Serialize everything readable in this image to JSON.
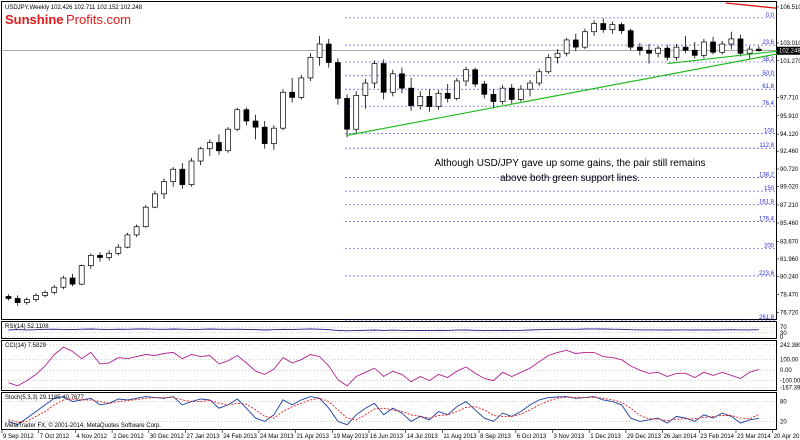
{
  "header": {
    "symbol_line": "USDJPY,Weekly  102.426 102.711 102.152 102.248"
  },
  "logo": {
    "part1": "Sunshine",
    "part2": "Profits.com"
  },
  "annotation": {
    "line1": "Although USD/JPY gave up some gains, the pair still remains",
    "line2": "above both green support lines."
  },
  "footer": {
    "copyright": "MetaTrader FX, © 2001-2014, MetaQuotes Software Corp."
  },
  "chart_data": {
    "type": "candlestick",
    "price_scale_labels": [
      "106.510",
      "103.010",
      "102.248",
      "101.270",
      "97.710",
      "95.910",
      "94.120",
      "92.460",
      "90.720",
      "89.020",
      "87.210",
      "85.460",
      "83.670",
      "81.960",
      "80.240",
      "78.470",
      "76.720"
    ],
    "price_scale_values": [
      106.51,
      103.01,
      102.248,
      101.27,
      97.71,
      95.91,
      94.12,
      92.46,
      90.72,
      89.02,
      87.21,
      85.46,
      83.67,
      81.96,
      80.24,
      78.47,
      76.72
    ],
    "price_range": [
      76.2,
      106.9
    ],
    "current_price": 102.248,
    "fib_levels": [
      {
        "label": "0.0",
        "value": 105.45
      },
      {
        "label": "23.6",
        "value": 102.8
      },
      {
        "label": "38.2",
        "value": 101.15
      },
      {
        "label": "50.0",
        "value": 99.8
      },
      {
        "label": "61.8",
        "value": 98.5
      },
      {
        "label": "76.4",
        "value": 96.85
      },
      {
        "label": "100",
        "value": 94.2
      },
      {
        "label": "112.8",
        "value": 92.75
      },
      {
        "label": "138.2",
        "value": 89.9
      },
      {
        "label": "150",
        "value": 88.57
      },
      {
        "label": "161.8",
        "value": 87.25
      },
      {
        "label": "176.4",
        "value": 85.6
      },
      {
        "label": "200",
        "value": 82.95
      },
      {
        "label": "223.6",
        "value": 80.3
      },
      {
        "label": "261.8",
        "value": 76.0
      }
    ],
    "x_labels": [
      "9 Sep 2012",
      "7 Oct 2012",
      "4 Nov 2012",
      "2 Dec 2012",
      "30 Dec 2012",
      "27 Jan 2013",
      "24 Feb 2013",
      "24 Mar 2013",
      "21 Apr 2013",
      "19 May 2013",
      "16 Jun 2013",
      "14 Jul 2013",
      "11 Aug 2013",
      "8 Sep 2013",
      "6 Oct 2013",
      "3 Nov 2013",
      "1 Dec 2013",
      "29 Dec 2013",
      "26 Jan 2014",
      "23 Feb 2014",
      "23 Mar 2014",
      "20 Apr 2014"
    ],
    "candles": [
      [
        78.3,
        78.5,
        77.9,
        78.1
      ],
      [
        78.1,
        78.4,
        77.4,
        77.7
      ],
      [
        77.7,
        78.2,
        77.5,
        78.0
      ],
      [
        78.0,
        78.6,
        77.8,
        78.4
      ],
      [
        78.4,
        78.9,
        78.2,
        78.7
      ],
      [
        78.7,
        79.4,
        78.5,
        79.2
      ],
      [
        79.2,
        80.3,
        79.0,
        80.1
      ],
      [
        80.1,
        80.5,
        79.3,
        79.5
      ],
      [
        79.5,
        81.4,
        79.4,
        81.3
      ],
      [
        81.3,
        82.5,
        81.0,
        82.3
      ],
      [
        82.3,
        82.6,
        81.7,
        82.1
      ],
      [
        82.1,
        82.8,
        81.8,
        82.5
      ],
      [
        82.5,
        83.4,
        82.3,
        83.1
      ],
      [
        83.1,
        84.5,
        83.0,
        84.3
      ],
      [
        84.3,
        85.3,
        84.1,
        85.1
      ],
      [
        85.1,
        87.2,
        85.0,
        87.0
      ],
      [
        87.0,
        88.6,
        86.9,
        88.3
      ],
      [
        88.3,
        89.8,
        87.8,
        89.5
      ],
      [
        89.5,
        90.9,
        89.0,
        90.7
      ],
      [
        90.7,
        91.3,
        88.8,
        89.2
      ],
      [
        89.2,
        91.8,
        89.0,
        91.5
      ],
      [
        91.5,
        92.9,
        91.1,
        92.7
      ],
      [
        92.7,
        93.6,
        92.0,
        93.3
      ],
      [
        93.3,
        94.1,
        92.1,
        92.5
      ],
      [
        92.5,
        94.8,
        92.3,
        94.6
      ],
      [
        94.6,
        96.7,
        94.4,
        96.5
      ],
      [
        96.5,
        96.7,
        95.0,
        95.4
      ],
      [
        95.4,
        96.0,
        93.6,
        94.8
      ],
      [
        94.8,
        95.4,
        92.7,
        93.2
      ],
      [
        93.2,
        95.0,
        92.6,
        94.7
      ],
      [
        94.7,
        98.5,
        94.5,
        98.2
      ],
      [
        98.2,
        99.6,
        97.2,
        97.7
      ],
      [
        97.7,
        99.9,
        97.5,
        99.6
      ],
      [
        99.6,
        102.0,
        99.3,
        101.6
      ],
      [
        101.6,
        103.7,
        100.8,
        102.9
      ],
      [
        102.9,
        103.4,
        100.6,
        101.1
      ],
      [
        101.1,
        101.5,
        97.0,
        97.6
      ],
      [
        97.6,
        98.0,
        93.8,
        94.6
      ],
      [
        94.6,
        98.3,
        94.1,
        97.9
      ],
      [
        97.9,
        99.5,
        96.6,
        99.1
      ],
      [
        99.1,
        101.3,
        98.6,
        101.0
      ],
      [
        101.0,
        101.4,
        97.5,
        98.2
      ],
      [
        98.2,
        100.4,
        97.8,
        100.0
      ],
      [
        100.0,
        100.6,
        98.1,
        98.6
      ],
      [
        98.6,
        99.6,
        96.4,
        96.9
      ],
      [
        96.9,
        98.3,
        96.5,
        97.8
      ],
      [
        97.8,
        98.5,
        96.3,
        96.8
      ],
      [
        96.8,
        98.4,
        96.5,
        98.1
      ],
      [
        98.1,
        99.0,
        97.2,
        97.6
      ],
      [
        97.6,
        99.6,
        97.4,
        99.3
      ],
      [
        99.3,
        100.7,
        98.8,
        100.4
      ],
      [
        100.4,
        100.6,
        98.7,
        99.0
      ],
      [
        99.0,
        99.3,
        97.6,
        98.0
      ],
      [
        98.0,
        98.5,
        96.6,
        97.3
      ],
      [
        97.3,
        98.9,
        97.0,
        98.6
      ],
      [
        98.6,
        99.0,
        97.1,
        97.5
      ],
      [
        97.5,
        98.9,
        97.3,
        98.5
      ],
      [
        98.5,
        99.4,
        97.8,
        99.1
      ],
      [
        99.1,
        100.5,
        98.8,
        100.2
      ],
      [
        100.2,
        101.9,
        100.0,
        101.6
      ],
      [
        101.6,
        102.4,
        101.0,
        102.0
      ],
      [
        102.0,
        103.5,
        101.7,
        103.3
      ],
      [
        103.3,
        103.9,
        102.2,
        102.6
      ],
      [
        102.6,
        104.4,
        102.4,
        104.1
      ],
      [
        104.1,
        105.2,
        103.7,
        104.9
      ],
      [
        104.9,
        105.4,
        104.0,
        104.3
      ],
      [
        104.3,
        105.1,
        103.9,
        104.8
      ],
      [
        104.8,
        105.0,
        103.9,
        104.2
      ],
      [
        104.2,
        104.4,
        102.3,
        102.6
      ],
      [
        102.6,
        103.0,
        101.8,
        102.3
      ],
      [
        102.3,
        102.9,
        101.0,
        102.0
      ],
      [
        102.0,
        102.7,
        101.6,
        102.5
      ],
      [
        102.5,
        102.8,
        101.3,
        101.6
      ],
      [
        101.6,
        102.9,
        101.3,
        102.6
      ],
      [
        102.6,
        103.7,
        102.0,
        102.3
      ],
      [
        102.3,
        103.1,
        101.5,
        101.8
      ],
      [
        101.8,
        103.4,
        101.5,
        103.1
      ],
      [
        103.1,
        103.6,
        101.9,
        102.1
      ],
      [
        102.1,
        103.2,
        101.9,
        102.9
      ],
      [
        102.9,
        104.1,
        102.4,
        103.4
      ],
      [
        103.4,
        103.8,
        101.7,
        102.0
      ],
      [
        102.0,
        102.7,
        101.4,
        102.4
      ],
      [
        102.4,
        102.7,
        102.15,
        102.25
      ]
    ],
    "support_lines": [
      {
        "name": "support-1",
        "color": "#22bb22",
        "from_index": 37,
        "from_value": 94.0,
        "to_index": 82,
        "to_value": 101.6
      },
      {
        "name": "support-2",
        "color": "#22bb22",
        "from_index": 72,
        "from_value": 101.0,
        "to_index": 82,
        "to_value": 102.0
      }
    ],
    "resistance_line": {
      "color": "#dd1111",
      "from_index": 74,
      "from_value": 106.9,
      "to_index": 82,
      "to_value": 106.4
    },
    "rsi": {
      "title": "RSI(14) 52.1108",
      "levels": [
        "70",
        "30",
        "0"
      ],
      "level_values": [
        70,
        30,
        0
      ],
      "range": [
        0,
        100
      ],
      "series": [
        50,
        53,
        51,
        52,
        55,
        56,
        54,
        53,
        56,
        57,
        55,
        54,
        56,
        55,
        57,
        58,
        56,
        55,
        57,
        56,
        54,
        55,
        57,
        56,
        55,
        56,
        54,
        53,
        50,
        52,
        55,
        54,
        56,
        58,
        56,
        52,
        47,
        44,
        46,
        48,
        50,
        47,
        49,
        48,
        46,
        47,
        46,
        48,
        47,
        49,
        50,
        48,
        47,
        46,
        48,
        47,
        48,
        50,
        52,
        54,
        55,
        56,
        55,
        57,
        58,
        57,
        56,
        55,
        52,
        51,
        51,
        51,
        50,
        51,
        51,
        50,
        51,
        50,
        51,
        52,
        51,
        51,
        52
      ]
    },
    "cci": {
      "title": "CCI(14) 7.5829",
      "levels": [
        "242.3802",
        "100.00",
        "0.00",
        "-100.00",
        "-167.3976"
      ],
      "level_values": [
        242.38,
        100,
        0,
        -100,
        -167.4
      ],
      "range": [
        -180,
        260
      ],
      "series": [
        -120,
        -150,
        -100,
        -40,
        40,
        150,
        220,
        180,
        110,
        170,
        60,
        70,
        120,
        110,
        130,
        150,
        140,
        160,
        170,
        110,
        150,
        130,
        140,
        60,
        90,
        140,
        70,
        -10,
        -40,
        10,
        120,
        70,
        100,
        150,
        130,
        40,
        -90,
        -150,
        -60,
        -20,
        20,
        -60,
        -10,
        -40,
        -110,
        -60,
        -100,
        -40,
        -70,
        -10,
        30,
        -30,
        -80,
        -100,
        -20,
        -60,
        -20,
        20,
        80,
        140,
        170,
        190,
        160,
        170,
        170,
        130,
        120,
        100,
        40,
        0,
        -30,
        -20,
        -60,
        -30,
        -30,
        -70,
        -20,
        -50,
        -20,
        -50,
        -80,
        -20,
        7.6
      ]
    },
    "stoch": {
      "title": "Stoch(5,3,3) 29.1185 40.7677",
      "levels": [
        "80",
        "20"
      ],
      "level_values": [
        80,
        20
      ],
      "range": [
        0,
        100
      ],
      "main": [
        20,
        10,
        30,
        50,
        70,
        90,
        95,
        80,
        85,
        90,
        70,
        75,
        88,
        85,
        90,
        95,
        92,
        90,
        95,
        70,
        80,
        88,
        85,
        60,
        70,
        88,
        60,
        30,
        20,
        40,
        85,
        70,
        85,
        95,
        90,
        60,
        20,
        10,
        40,
        60,
        75,
        40,
        60,
        45,
        20,
        35,
        25,
        50,
        40,
        65,
        80,
        55,
        30,
        20,
        45,
        35,
        50,
        70,
        85,
        92,
        94,
        95,
        90,
        92,
        95,
        85,
        80,
        70,
        30,
        20,
        25,
        30,
        15,
        35,
        30,
        20,
        40,
        30,
        45,
        35,
        15,
        25,
        29.1
      ],
      "signal": [
        25,
        18,
        20,
        35,
        50,
        70,
        85,
        88,
        85,
        85,
        80,
        75,
        80,
        83,
        86,
        90,
        92,
        92,
        93,
        85,
        80,
        80,
        84,
        75,
        70,
        75,
        72,
        55,
        35,
        30,
        50,
        65,
        75,
        85,
        90,
        80,
        55,
        30,
        25,
        40,
        58,
        60,
        55,
        50,
        40,
        35,
        30,
        38,
        40,
        50,
        62,
        65,
        55,
        38,
        35,
        35,
        42,
        55,
        70,
        82,
        90,
        93,
        93,
        92,
        93,
        90,
        85,
        78,
        60,
        38,
        28,
        27,
        22,
        27,
        28,
        28,
        32,
        35,
        38,
        38,
        30,
        28,
        40.8
      ]
    }
  }
}
